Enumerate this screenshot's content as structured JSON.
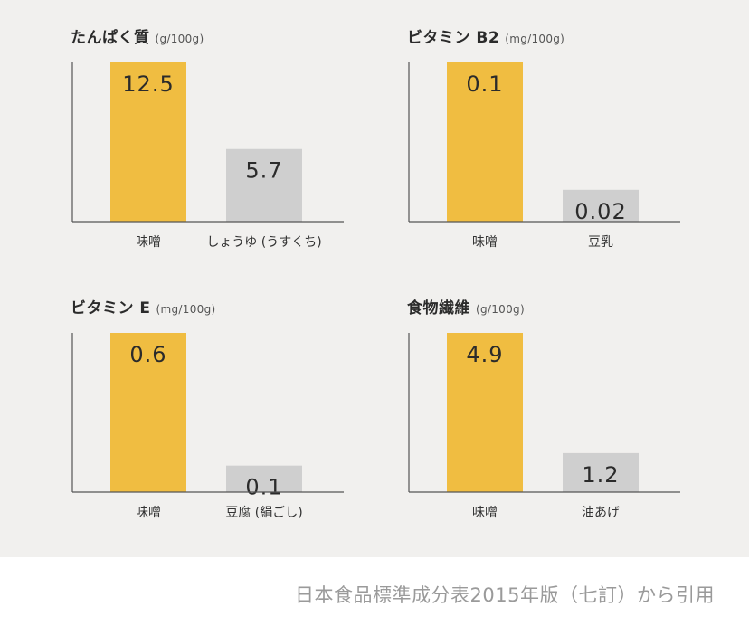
{
  "colors": {
    "background": "#f1f0ee",
    "miso_bar": "#f0bd41",
    "compare_bar": "#cfcfcf",
    "axis": "#555555",
    "value_text": "#2b2b2b",
    "source_text": "#9a9a9a"
  },
  "chart_data": [
    {
      "type": "bar",
      "title": "たんぱく質",
      "unit": "(g/100g)",
      "categories": [
        "味噌",
        "しょうゆ (うすくち)"
      ],
      "values": [
        12.5,
        5.7
      ],
      "value_labels": [
        "12.5",
        "5.7"
      ],
      "ylim": [
        0,
        12.5
      ]
    },
    {
      "type": "bar",
      "title": "ビタミン B2",
      "unit": "(mg/100g)",
      "categories": [
        "味噌",
        "豆乳"
      ],
      "values": [
        0.1,
        0.02
      ],
      "value_labels": [
        "0.1",
        "0.02"
      ],
      "ylim": [
        0,
        0.1
      ]
    },
    {
      "type": "bar",
      "title": "ビタミン E",
      "unit": "(mg/100g)",
      "categories": [
        "味噌",
        "豆腐 (絹ごし)"
      ],
      "values": [
        0.6,
        0.1
      ],
      "value_labels": [
        "0.6",
        "0.1"
      ],
      "ylim": [
        0,
        0.6
      ]
    },
    {
      "type": "bar",
      "title": "食物繊維",
      "unit": "(g/100g)",
      "categories": [
        "味噌",
        "油あげ"
      ],
      "values": [
        4.9,
        1.2
      ],
      "value_labels": [
        "4.9",
        "1.2"
      ],
      "ylim": [
        0,
        4.9
      ]
    }
  ],
  "source": "日本食品標準成分表2015年版（七訂）から引用"
}
